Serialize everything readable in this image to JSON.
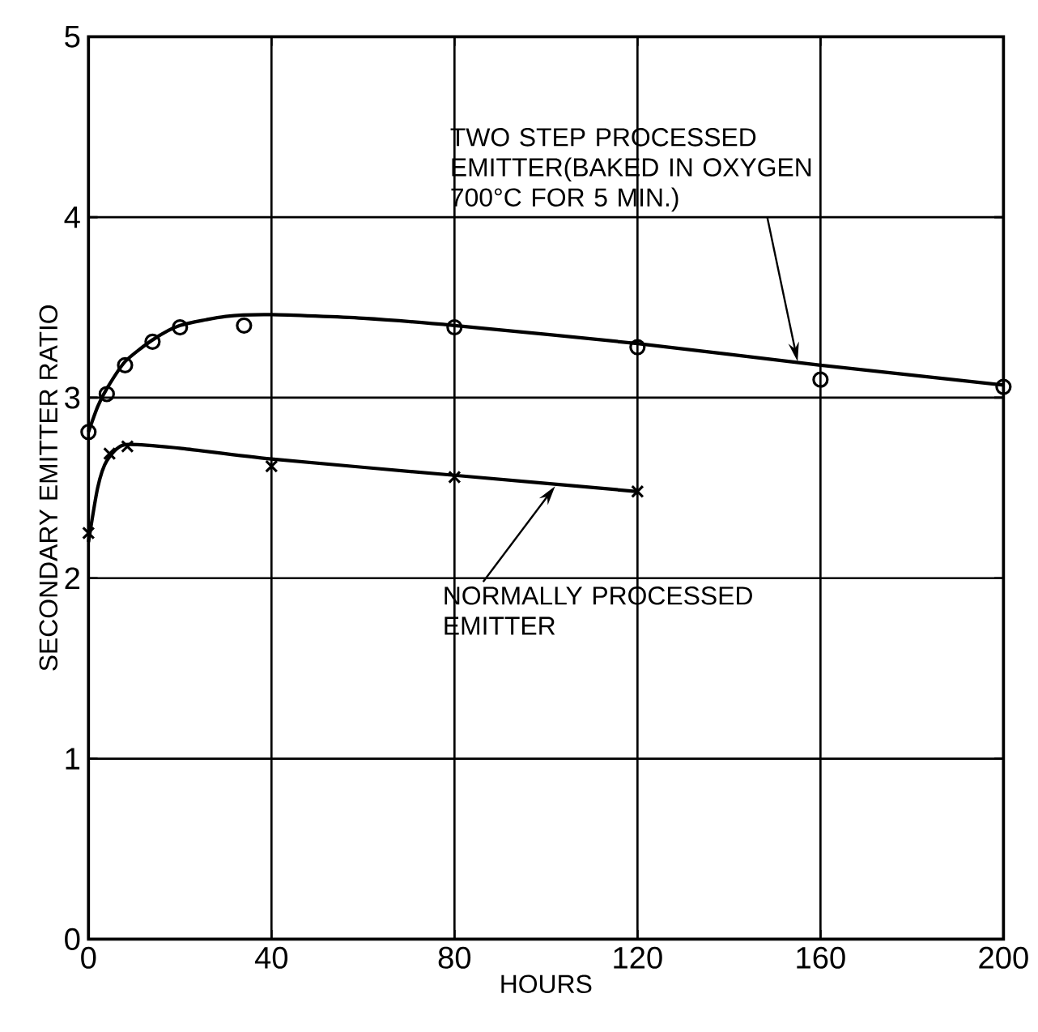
{
  "chart_data": {
    "type": "scatter",
    "xlabel": "HOURS",
    "ylabel": "SECONDARY EMITTER RATIO",
    "xlim": [
      0,
      200
    ],
    "ylim": [
      0,
      5
    ],
    "xticks": [
      0,
      40,
      80,
      120,
      160,
      200
    ],
    "yticks": [
      0,
      1,
      2,
      3,
      4,
      5
    ],
    "grid": true,
    "series": [
      {
        "type": "line",
        "color": "#000000",
        "marker": "none",
        "x": [
          0,
          2,
          4,
          8,
          14,
          20,
          30,
          40,
          60,
          80,
          120,
          160,
          200
        ],
        "values": [
          2.81,
          2.95,
          3.05,
          3.2,
          3.32,
          3.4,
          3.45,
          3.46,
          3.44,
          3.4,
          3.3,
          3.18,
          3.07
        ]
      },
      {
        "type": "scatter",
        "color": "#000000",
        "marker": "circle",
        "x": [
          0,
          4,
          8,
          14,
          20,
          34,
          80,
          120,
          160,
          200
        ],
        "values": [
          2.81,
          3.02,
          3.18,
          3.31,
          3.39,
          3.4,
          3.39,
          3.28,
          3.1,
          3.06
        ]
      },
      {
        "type": "line",
        "color": "#000000",
        "marker": "none",
        "x": [
          0,
          2,
          4,
          8,
          20,
          40,
          80,
          120
        ],
        "values": [
          2.2,
          2.5,
          2.65,
          2.74,
          2.72,
          2.66,
          2.57,
          2.48
        ]
      },
      {
        "type": "scatter",
        "color": "#000000",
        "marker": "cross",
        "x": [
          0,
          4.6,
          8.5,
          40,
          80,
          120
        ],
        "values": [
          2.25,
          2.69,
          2.73,
          2.62,
          2.56,
          2.48
        ]
      }
    ],
    "annotations": [
      {
        "text": "TWO STEP PROCESSED EMITTER(BAKED IN OXYGEN 700°C FOR 5 MIN.)",
        "x": 155,
        "y": 3.2
      },
      {
        "text": "NORMALLY PROCESSED EMITTER",
        "x": 102,
        "y": 2.51
      }
    ]
  }
}
